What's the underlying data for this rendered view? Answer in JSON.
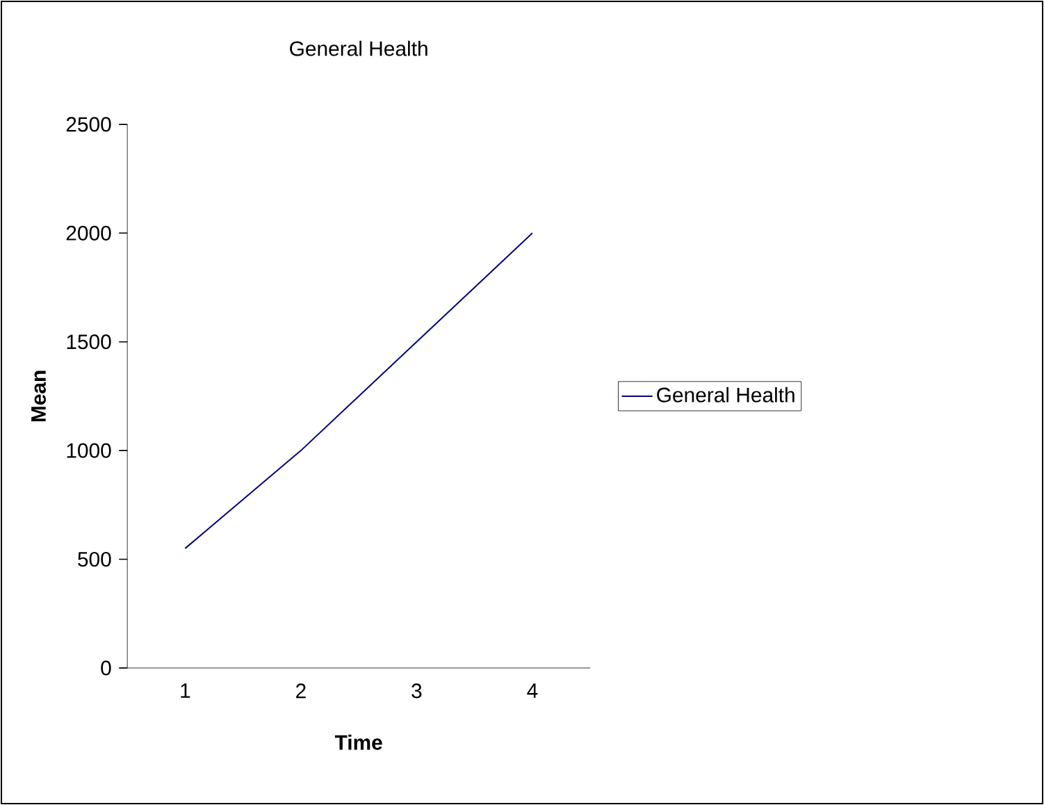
{
  "chart_data": {
    "type": "line",
    "title": "General Health",
    "xlabel": "Time",
    "ylabel": "Mean",
    "categories": [
      "1",
      "2",
      "3",
      "4"
    ],
    "series": [
      {
        "name": "General Health",
        "color": "#000080",
        "values": [
          550,
          1000,
          1500,
          2000
        ]
      }
    ],
    "ylim": [
      0,
      2500
    ],
    "yticks": [
      0,
      500,
      1000,
      1500,
      2000,
      2500
    ],
    "legend": "right",
    "marker": "none",
    "line_style": "solid"
  }
}
